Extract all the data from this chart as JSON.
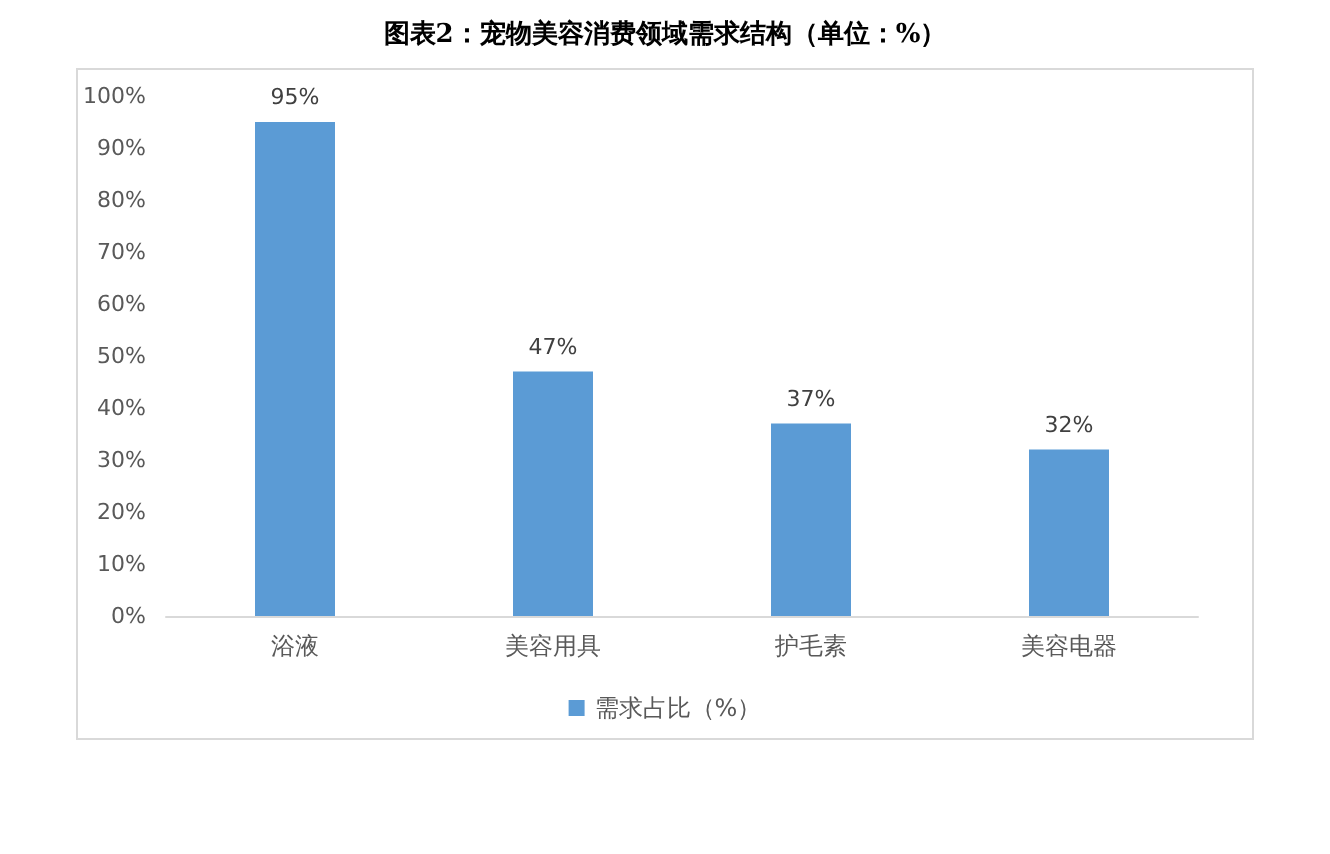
{
  "chart_data": {
    "type": "bar",
    "title": "图表2：宠物美容消费领域需求结构（单位：%）",
    "categories": [
      "浴液",
      "美容用具",
      "护毛素",
      "美容电器"
    ],
    "series": [
      {
        "name": "需求占比（%）",
        "color": "#5b9bd5",
        "values": [
          95,
          47,
          37,
          32
        ],
        "value_labels": [
          "95%",
          "47%",
          "37%",
          "32%"
        ]
      }
    ],
    "ylim": [
      0,
      100
    ],
    "yticks": [
      {
        "value": 0,
        "label": "0%"
      },
      {
        "value": 10,
        "label": "10%"
      },
      {
        "value": 20,
        "label": "20%"
      },
      {
        "value": 30,
        "label": "30%"
      },
      {
        "value": 40,
        "label": "40%"
      },
      {
        "value": 50,
        "label": "50%"
      },
      {
        "value": 60,
        "label": "60%"
      },
      {
        "value": 70,
        "label": "70%"
      },
      {
        "value": 80,
        "label": "80%"
      },
      {
        "value": 90,
        "label": "90%"
      },
      {
        "value": 100,
        "label": "100%"
      }
    ],
    "grid": false,
    "legend": "bottom"
  }
}
